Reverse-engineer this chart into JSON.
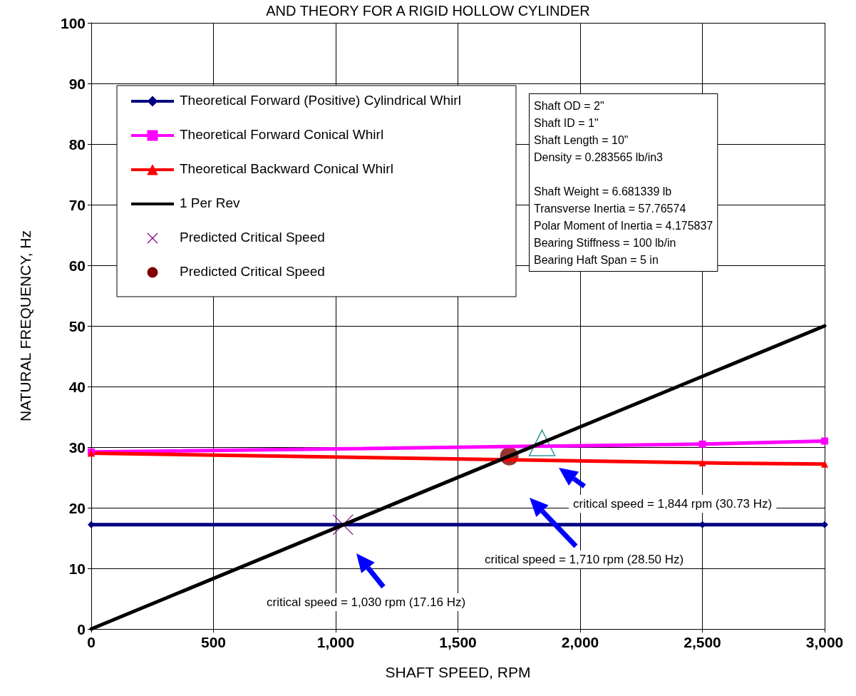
{
  "chart_data": {
    "type": "line",
    "title": "AND THEORY FOR A RIGID HOLLOW CYLINDER",
    "xlabel": "SHAFT SPEED, RPM",
    "ylabel": "NATURAL FREQUENCY, Hz",
    "xlim": [
      0,
      3000
    ],
    "xticks": [
      0,
      500,
      {
        "value": 1000,
        "label": "1,000"
      },
      {
        "value": 1500,
        "label": "1,500"
      },
      {
        "value": 2000,
        "label": "2,000"
      },
      {
        "value": 2500,
        "label": "2,500"
      },
      {
        "value": 3000,
        "label": "3,000"
      }
    ],
    "ylim": [
      0,
      100
    ],
    "yticks": [
      0,
      10,
      20,
      30,
      40,
      50,
      60,
      70,
      80,
      90,
      100
    ],
    "grid": true,
    "legend": "top left",
    "line_style": "solid",
    "series": [
      {
        "name": "Theoretical Forward (Positive) Cylindrical Whirl",
        "color": "#000080",
        "x": [
          0,
          2500,
          3000
        ],
        "values": [
          17.2,
          17.2,
          17.2
        ],
        "marker": "diamond"
      },
      {
        "name": "Theoretical Forward Conical Whirl",
        "color": "#ff00ff",
        "x": [
          0,
          2500,
          3000
        ],
        "values": [
          29.2,
          30.5,
          31
        ],
        "marker": "square"
      },
      {
        "name": "Theoretical Backward Conical Whirl",
        "color": "#ff0000",
        "x": [
          0,
          2500,
          3000
        ],
        "values": [
          29,
          27.4,
          27.2
        ],
        "marker": "triangle"
      },
      {
        "name": "1 Per Rev",
        "color": "#000000",
        "x": [
          0,
          3000
        ],
        "values": [
          0,
          50
        ],
        "marker": "none"
      },
      {
        "name": "Predicted Critical Speed",
        "type": "scatter",
        "color": "#800080",
        "x": [
          1030
        ],
        "values": [
          17.2
        ],
        "marker": "cross"
      },
      {
        "name": "Predicted Critical Speed",
        "type": "scatter",
        "color": "#800000",
        "x": [
          1710
        ],
        "values": [
          28.5
        ],
        "marker": "circle"
      },
      {
        "type": "scatter",
        "color": "#008080",
        "x": [
          1844
        ],
        "values": [
          30.7
        ],
        "marker": "triangle"
      }
    ],
    "annotations": [
      "critical speed = 1,030 rpm (17.16 Hz)",
      "critical speed = 1,710 rpm (28.50 Hz)",
      "critical speed = 1,844 rpm (30.73 Hz)",
      "Shaft OD = 2\"\nShaft ID = 1\"\nShaft Length = 10\"\nDensity = 0.283565 lb/in3\n\nShaft Weight = 6.681339 lb\nTransverse Inertia = 57.76574\nPolar Moment of Inertia = 4.175837\nBearing Stiffness = 100 lb/in\nBearing Haft Span = 5 in"
    ]
  }
}
